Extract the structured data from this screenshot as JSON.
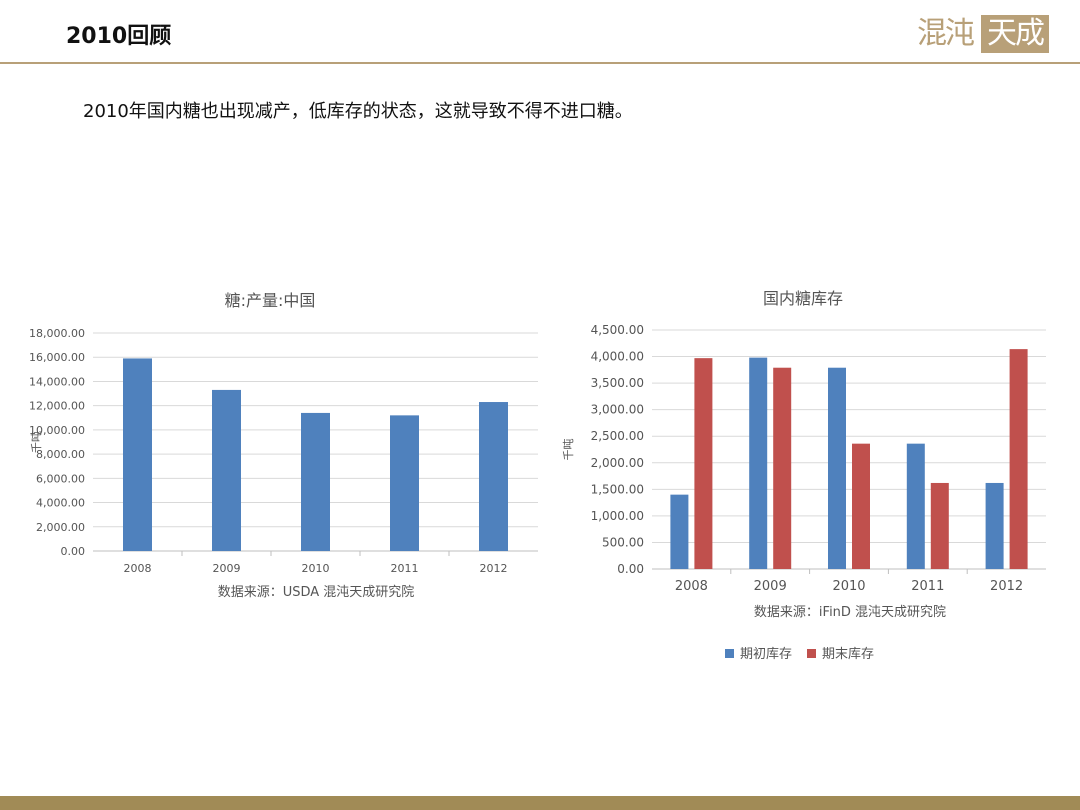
{
  "header": {
    "title": "2010回顾",
    "logo_text": "混沌天成"
  },
  "intro_text": "2010年国内糖也出现减产，低库存的状态，这就导致不得不进口糖。",
  "colors": {
    "brand": "#b8a078",
    "footer": "#a18b56",
    "series_blue": "#4f81bd",
    "series_red": "#c0504d"
  },
  "chart_data": [
    {
      "type": "bar",
      "title": "糖:产量:中国",
      "ylabel": "千吨",
      "source": "数据来源：USDA  混沌天成研究院",
      "categories": [
        "2008",
        "2009",
        "2010",
        "2011",
        "2012"
      ],
      "values": [
        15900,
        13300,
        11400,
        11200,
        12300
      ],
      "ylim": [
        0,
        18000
      ],
      "ytick_step": 2000,
      "ytick_labels": [
        "0.00",
        "2,000.00",
        "4,000.00",
        "6,000.00",
        "8,000.00",
        "10,000.00",
        "12,000.00",
        "14,000.00",
        "16,000.00",
        "18,000.00"
      ],
      "grid": true,
      "legend": "none"
    },
    {
      "type": "bar",
      "title": "国内糖库存",
      "ylabel": "千吨",
      "source": "数据来源：iFinD 混沌天成研究院",
      "categories": [
        "2008",
        "2009",
        "2010",
        "2011",
        "2012"
      ],
      "series": [
        {
          "name": "期初库存",
          "values": [
            1400,
            3980,
            3790,
            2360,
            1620
          ]
        },
        {
          "name": "期末库存",
          "values": [
            3970,
            3790,
            2360,
            1620,
            4140
          ]
        }
      ],
      "ylim": [
        0,
        4500
      ],
      "ytick_step": 500,
      "ytick_labels": [
        "0.00",
        "500.00",
        "1,000.00",
        "1,500.00",
        "2,000.00",
        "2,500.00",
        "3,000.00",
        "3,500.00",
        "4,000.00",
        "4,500.00"
      ],
      "grid": true,
      "legend": "bottom"
    }
  ]
}
